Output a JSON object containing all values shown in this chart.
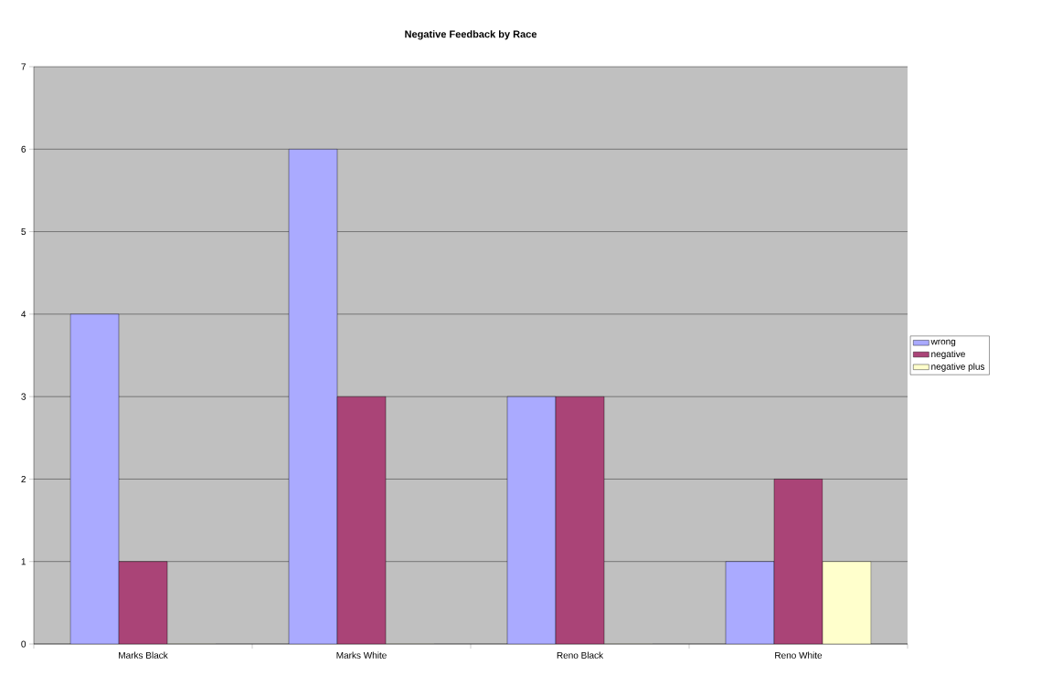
{
  "chart_data": {
    "type": "bar",
    "title": "Negative Feedback by Race",
    "categories": [
      "Marks Black",
      "Marks White",
      "Reno Black",
      "Reno White"
    ],
    "series": [
      {
        "name": "wrong",
        "color": "#aaaaff",
        "values": [
          4,
          6,
          3,
          1
        ]
      },
      {
        "name": "negative",
        "color": "#aa4477",
        "values": [
          1,
          3,
          3,
          2
        ]
      },
      {
        "name": "negative plus",
        "color": "#ffffcc",
        "values": [
          0,
          0,
          0,
          1
        ]
      }
    ],
    "ylim": [
      0,
      7
    ],
    "yticks": [
      0,
      1,
      2,
      3,
      4,
      5,
      6,
      7
    ],
    "grid": "y",
    "legend": "right"
  }
}
